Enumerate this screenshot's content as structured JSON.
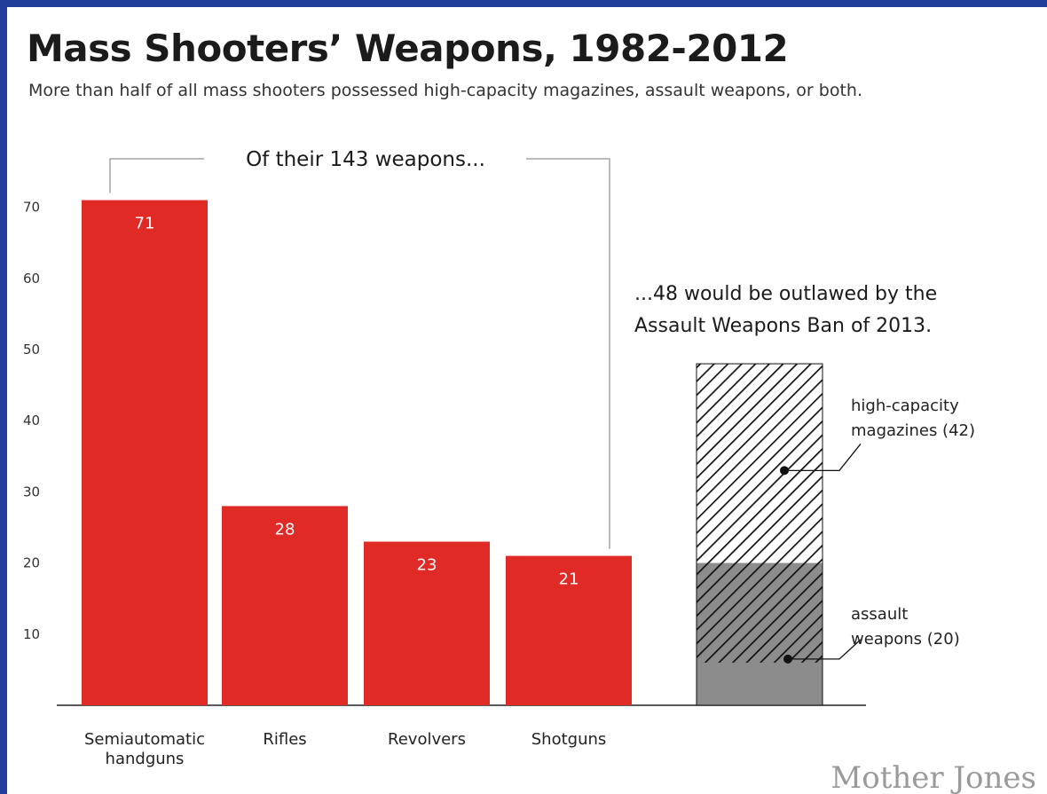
{
  "title": "Mass Shooters’ Weapons, 1982-2012",
  "subtitle": "More than half of all mass shooters possessed high-capacity magazines, assault weapons, or both.",
  "brand": "Mother Jones",
  "colors": {
    "frame": "#1f3f9a",
    "bar": "#e02a26",
    "assault_fill": "#8c8c8c",
    "hatch": "#111111"
  },
  "chart_data": {
    "type": "bar",
    "title": "Mass Shooters’ Weapons, 1982-2012",
    "subtitle": "More than half of all mass shooters possessed high-capacity magazines, assault weapons, or both.",
    "categories": [
      "Semiautomatic handguns",
      "Rifles",
      "Revolvers",
      "Shotguns"
    ],
    "category_lines": [
      [
        "Semiautomatic",
        "handguns"
      ],
      [
        "Rifles"
      ],
      [
        "Revolvers"
      ],
      [
        "Shotguns"
      ]
    ],
    "values": [
      71,
      28,
      23,
      21
    ],
    "value_labels": [
      "71",
      "28",
      "23",
      "21"
    ],
    "yticks": [
      10,
      20,
      30,
      40,
      50,
      60,
      70
    ],
    "ytick_labels": [
      "10",
      "20",
      "30",
      "40",
      "50",
      "60",
      "70"
    ],
    "ylim": [
      0,
      75
    ],
    "bracket_label": "Of their 143 weapons...",
    "outlawed": {
      "total": 48,
      "annotation_lines": [
        "...48 would be outlawed by the",
        "Assault Weapons Ban of 2013."
      ],
      "segments": [
        {
          "name": "high-capacity magazines",
          "value": 42,
          "label_lines": [
            "high-capacity",
            "magazines (42)"
          ],
          "pattern": "hatched"
        },
        {
          "name": "assault weapons",
          "value": 20,
          "label_lines": [
            "assault",
            "weapons (20)"
          ],
          "pattern": "gray"
        }
      ],
      "overlap": 14
    },
    "grid": false
  }
}
